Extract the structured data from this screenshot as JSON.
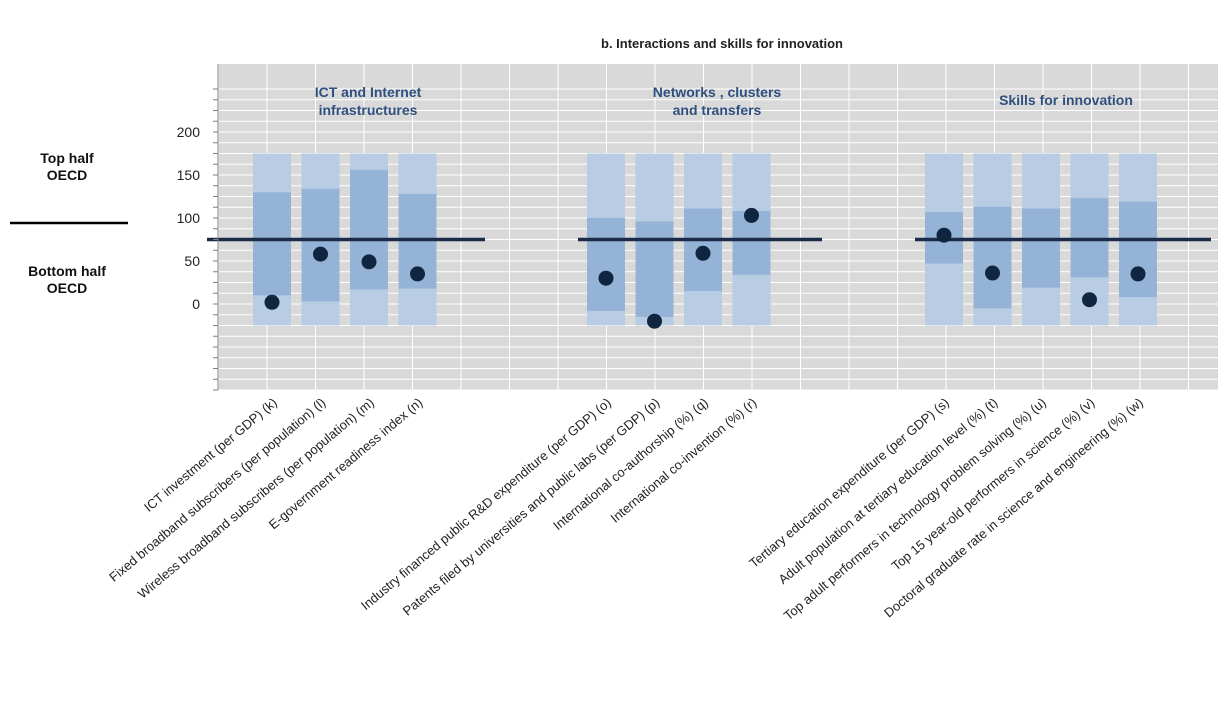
{
  "chart_data": {
    "type": "range",
    "title": "b. Interactions and skills for innovation",
    "y_ticks": [
      "0",
      "50",
      "100",
      "150",
      "200"
    ],
    "ylim": [
      -100,
      250
    ],
    "benchmark_line_value": 75,
    "side_labels": {
      "top": [
        "Top half",
        "OECD"
      ],
      "bottom": [
        "Bottom half",
        "OECD"
      ]
    },
    "colors": {
      "outer": "#b8cce4",
      "inner": "#95b3d7",
      "dot": "#0f2540",
      "line": "#1a2a47",
      "plot_bg": "#d9d9d9",
      "title": "#2f4f7f"
    },
    "groups": [
      {
        "title": [
          "ICT and Internet",
          "infrastructures"
        ],
        "items": [
          {
            "label": "ICT investment (per GDP) (k)",
            "outer": [
              -25,
              175
            ],
            "inner": [
              10,
              130
            ],
            "value": 2
          },
          {
            "label": "Fixed broadband subscribers (per population) (l)",
            "outer": [
              -25,
              175
            ],
            "inner": [
              3,
              134
            ],
            "value": 58
          },
          {
            "label": "Wireless broadband subscribers (per population) (m)",
            "outer": [
              -25,
              175
            ],
            "inner": [
              17,
              156
            ],
            "value": 49
          },
          {
            "label": "E-government readiness index (n)",
            "outer": [
              -25,
              175
            ],
            "inner": [
              18,
              128
            ],
            "value": 35
          }
        ]
      },
      {
        "title": [
          "Networks , clusters",
          "and transfers"
        ],
        "items": [
          {
            "label": "Industry financed public R&D expenditure (per GDP) (o)",
            "outer": [
              -25,
              175
            ],
            "inner": [
              -8,
              100
            ],
            "value": 30
          },
          {
            "label": "Patents filed by universities and public labs (per GDP) (p)",
            "outer": [
              -25,
              175
            ],
            "inner": [
              -15,
              96
            ],
            "value": -20
          },
          {
            "label": "International co-authorship (%) (q)",
            "outer": [
              -25,
              175
            ],
            "inner": [
              15,
              111
            ],
            "value": 59
          },
          {
            "label": "International co-invention (%) (r)",
            "outer": [
              -25,
              175
            ],
            "inner": [
              34,
              108
            ],
            "value": 103
          }
        ]
      },
      {
        "title": [
          "Skills for innovation"
        ],
        "items": [
          {
            "label": "Tertiary education expenditure (per GDP) (s)",
            "outer": [
              -25,
              175
            ],
            "inner": [
              47,
              107
            ],
            "value": 80
          },
          {
            "label": "Adult population at tertiary education level (%) (t)",
            "outer": [
              -25,
              175
            ],
            "inner": [
              -5,
              113
            ],
            "value": 36
          },
          {
            "label": "Top adult performers in technology problem solving (%) (u)",
            "outer": [
              -25,
              175
            ],
            "inner": [
              19,
              111
            ],
            "value": null
          },
          {
            "label": "Top 15 year-old performers in science (%) (v)",
            "outer": [
              -25,
              175
            ],
            "inner": [
              31,
              123
            ],
            "value": 5
          },
          {
            "label": "Doctoral graduate rate in science and engineering (%) (w)",
            "outer": [
              -25,
              175
            ],
            "inner": [
              8,
              119
            ],
            "value": 35
          }
        ]
      }
    ]
  }
}
